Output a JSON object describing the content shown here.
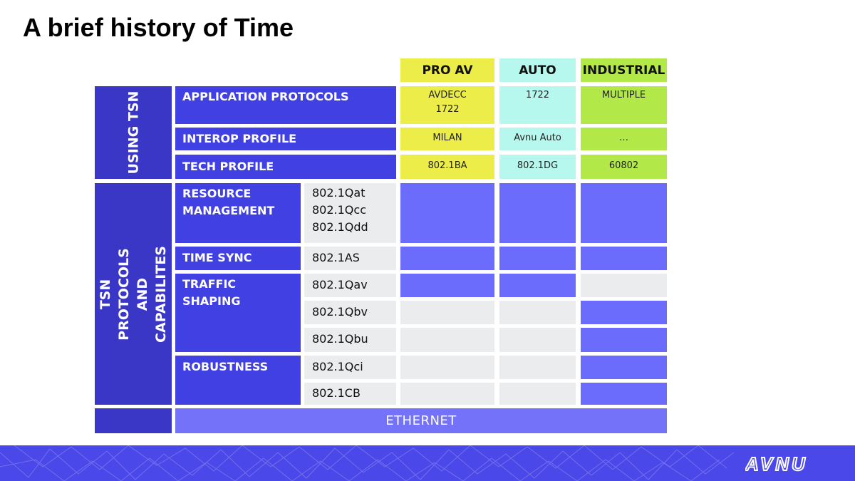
{
  "title": "A brief history of Time",
  "headers": {
    "pro_av": "PRO AV",
    "auto": "AUTO",
    "industrial": "INDUSTRIAL"
  },
  "sections": {
    "using_tsn": "USING TSN",
    "protocols": "TSN PROTOCOLS AND CAPABILITES"
  },
  "rows": {
    "app_protocols": {
      "label": "APPLICATION PROTOCOLS",
      "pro_av": "AVDECC\n1722",
      "auto": "1722",
      "industrial": "MULTIPLE"
    },
    "interop_profile": {
      "label": "INTEROP PROFILE",
      "pro_av": "MILAN",
      "auto": "Avnu Auto",
      "industrial": "…"
    },
    "tech_profile": {
      "label": "TECH PROFILE",
      "pro_av": "802.1BA",
      "auto": "802.1DG",
      "industrial": "60802"
    }
  },
  "capabilities": {
    "resource_management": {
      "label": "RESOURCE MANAGEMENT",
      "codes": "802.1Qat\n802.1Qcc\n802.1Qdd"
    },
    "time_sync": {
      "label": "TIME SYNC",
      "code": "802.1AS"
    },
    "traffic_shaping": {
      "label": "TRAFFIC SHAPING",
      "codes": [
        "802.1Qav",
        "802.1Qbv",
        "802.1Qbu"
      ]
    },
    "robustness": {
      "label": "ROBUSTNESS",
      "codes": [
        "802.1Qci",
        "802.1CB"
      ]
    }
  },
  "ethernet": "ETHERNET",
  "colors": {
    "dark": "#4040e3",
    "side": "#3b37c6",
    "supported": "#6b6cfb",
    "unsupported": "#ebeced",
    "pro_av": "#eded4a",
    "auto": "#b7f8ee",
    "industrial": "#b2e948"
  },
  "logo_text": "AVNU"
}
